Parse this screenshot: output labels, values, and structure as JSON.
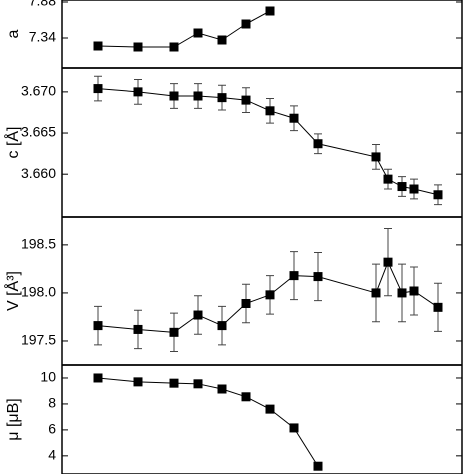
{
  "chart_data": [
    {
      "type": "line",
      "y_label": "a",
      "x": [
        9,
        19,
        28,
        34,
        40,
        46,
        52
      ],
      "xlim": [
        0,
        100
      ],
      "series": [
        {
          "color": "#000000",
          "values": [
            7.22,
            7.205,
            7.205,
            7.415,
            7.31,
            7.55,
            7.745
          ],
          "errors": [
            0.04,
            0.04,
            0.04,
            0.05,
            0.05,
            0.05,
            0.05
          ]
        }
      ],
      "ylim": [
        6.89,
        7.91
      ],
      "yticks": [
        7.34,
        7.88
      ]
    },
    {
      "type": "line",
      "y_label": "c [Å]",
      "x": [
        9,
        19,
        28,
        34,
        40,
        46,
        52,
        58,
        64,
        78.5,
        81.5,
        85,
        88,
        94
      ],
      "xlim": [
        0,
        100
      ],
      "series": [
        {
          "color": "#000000",
          "values": [
            3.6704,
            3.67,
            3.6695,
            3.6695,
            3.6693,
            3.669,
            3.6677,
            3.6668,
            3.6637,
            3.6621,
            3.6594,
            3.6585,
            3.6582,
            3.6575
          ],
          "errors": [
            0.0015,
            0.0015,
            0.0015,
            0.0015,
            0.0015,
            0.0015,
            0.0015,
            0.0015,
            0.0012,
            0.0015,
            0.0012,
            0.0012,
            0.0012,
            0.0012
          ]
        }
      ],
      "ylim": [
        3.6548,
        3.6729
      ],
      "yticks": [
        {
          "value": 3.66,
          "label": "3.660"
        },
        {
          "value": 3.665,
          "label": "3.665"
        },
        {
          "value": 3.67,
          "label": "3.670"
        }
      ]
    },
    {
      "type": "line",
      "y_label": "V [Å³]",
      "x": [
        9,
        19,
        28,
        34,
        40,
        46,
        52,
        58,
        64,
        78.5,
        81.5,
        85,
        88,
        94
      ],
      "xlim": [
        0,
        100
      ],
      "series": [
        {
          "color": "#000000",
          "values": [
            197.66,
            197.62,
            197.59,
            197.77,
            197.66,
            197.89,
            197.98,
            198.18,
            198.17,
            198.0,
            198.32,
            198.0,
            198.02,
            197.85
          ],
          "errors": [
            0.2,
            0.2,
            0.2,
            0.2,
            0.2,
            0.2,
            0.2,
            0.25,
            0.25,
            0.3,
            0.35,
            0.3,
            0.25,
            0.25
          ]
        }
      ],
      "ylim": [
        197.25,
        198.79
      ],
      "yticks": [
        197.5,
        {
          "value": 198,
          "label": "198.0"
        },
        198.5
      ]
    },
    {
      "type": "line",
      "y_label": "μ [μB]",
      "x": [
        9,
        19,
        28,
        34,
        40,
        46,
        52,
        58,
        64
      ],
      "xlim": [
        0,
        100
      ],
      "series": [
        {
          "color": "#000000",
          "values": [
            10.0,
            9.7,
            9.6,
            9.55,
            9.15,
            8.55,
            7.6,
            6.15,
            3.2
          ]
        }
      ],
      "ylim": [
        2.6,
        11.0
      ],
      "yticks": [
        4,
        6,
        8,
        10
      ]
    }
  ]
}
